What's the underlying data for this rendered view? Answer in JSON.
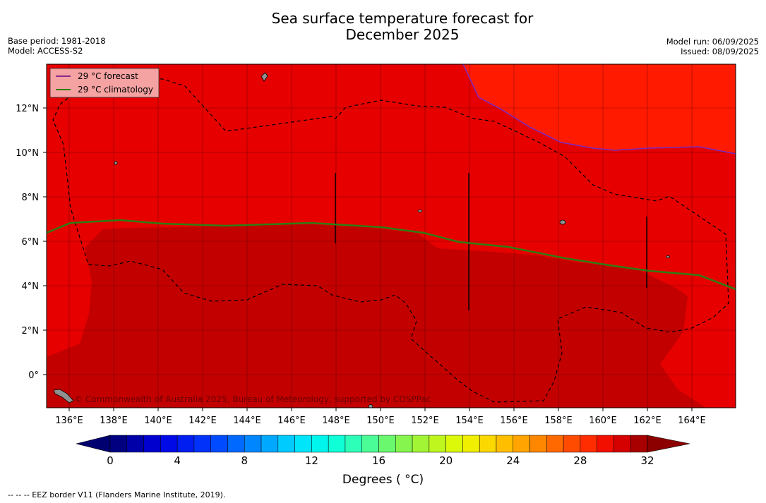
{
  "header": {
    "title_line1": "Sea surface temperature forecast for",
    "title_line2": "December 2025",
    "base_period": "Base period: 1981-2018",
    "model": "Model: ACCESS-S2",
    "model_run": "Model run: 06/09/2025",
    "issued": "Issued: 08/09/2025"
  },
  "map": {
    "lon_range": [
      135,
      166
    ],
    "lat_range": [
      -1.5,
      14
    ],
    "lon_ticks": [
      "136°E",
      "138°E",
      "140°E",
      "142°E",
      "144°E",
      "146°E",
      "148°E",
      "150°E",
      "152°E",
      "154°E",
      "156°E",
      "158°E",
      "160°E",
      "162°E",
      "164°E"
    ],
    "lat_ticks": [
      "0°",
      "2°N",
      "4°N",
      "6°N",
      "8°N",
      "10°N",
      "12°N"
    ],
    "legend": {
      "forecast_label": "29 °C  forecast",
      "climatology_label": "29 °C  climatology",
      "forecast_color": "#8b2a8b",
      "climatology_color": "#2e7d12"
    },
    "credit": "© Commonwealth of Australia 2025, Bureau of Meteorology, supported by COSPPac",
    "zone_colors": {
      "above_29": "#ff1a00",
      "28_29": "#e60000",
      "29_30": "#c30000",
      "land": "#909090"
    }
  },
  "colorbar": {
    "ticks": [
      "0",
      "4",
      "8",
      "12",
      "16",
      "20",
      "24",
      "28",
      "32"
    ],
    "label": "Degrees ( °C)",
    "min": 0,
    "max": 32,
    "step": 1
  },
  "footnote": "--  --  -- EEZ border V11 (Flanders Marine Institute, 2019)."
}
